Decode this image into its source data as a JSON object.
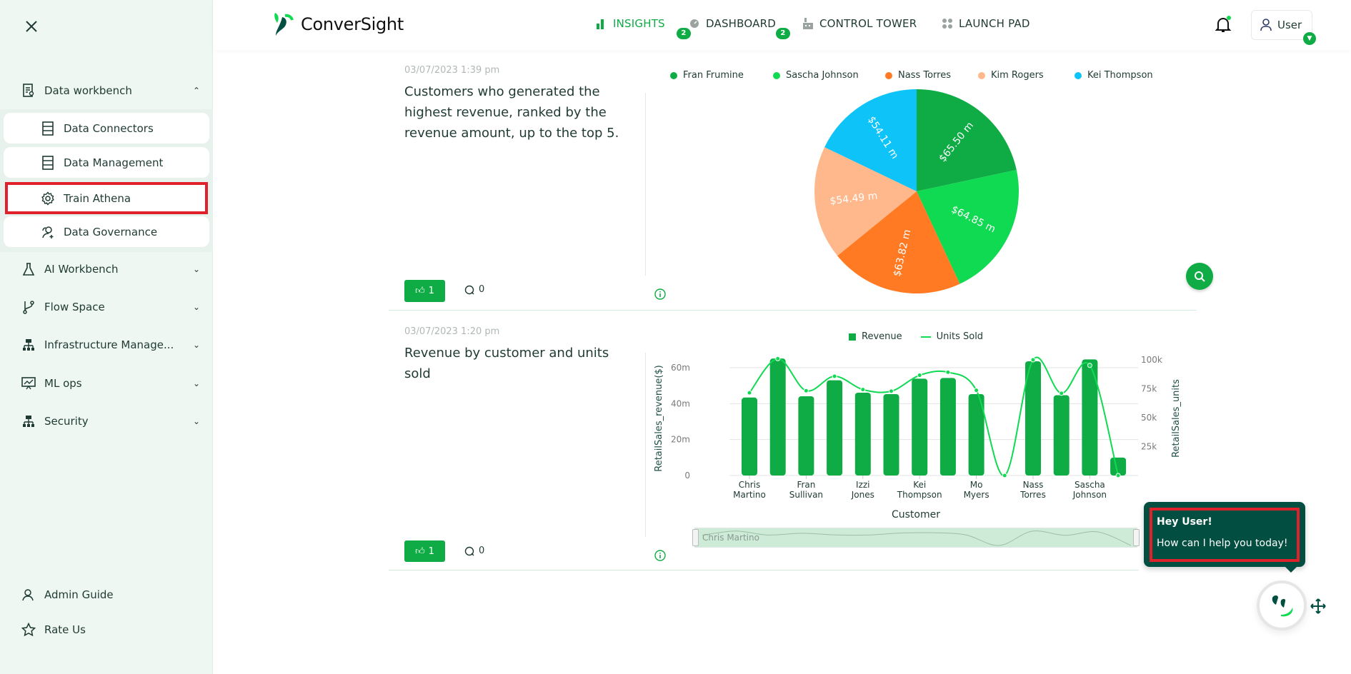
{
  "sidebar": {
    "close_icon": "close-icon",
    "sections": [
      {
        "label": "Data workbench",
        "icon": "report-icon",
        "expanded": true
      },
      {
        "label": "AI Workbench",
        "icon": "flask-icon"
      },
      {
        "label": "Flow Space",
        "icon": "branch-icon"
      },
      {
        "label": "Infrastructure Manage...",
        "icon": "sitemap-icon"
      },
      {
        "label": "ML ops",
        "icon": "presentation-chart-icon"
      },
      {
        "label": "Security",
        "icon": "sitemap-icon"
      }
    ],
    "sub_items": [
      {
        "label": "Data Connectors",
        "icon": "server-icon"
      },
      {
        "label": "Data Management",
        "icon": "server-icon"
      },
      {
        "label": "Train Athena",
        "icon": "gear-icon",
        "highlighted": true
      },
      {
        "label": "Data Governance",
        "icon": "users-icon"
      }
    ],
    "footer": [
      {
        "label": "Admin Guide",
        "icon": "user-guide-icon"
      },
      {
        "label": "Rate Us",
        "icon": "star-icon"
      }
    ]
  },
  "header": {
    "logo_text": "ConverSight",
    "nav": [
      {
        "label": "INSIGHTS",
        "badge": "2",
        "active": true
      },
      {
        "label": "DASHBOARD",
        "badge": "2"
      },
      {
        "label": "CONTROL TOWER"
      },
      {
        "label": "LAUNCH PAD"
      }
    ],
    "user_label": "User"
  },
  "colors": {
    "accent": "#0fac45",
    "bright_green": "#10d952",
    "dark_green": "#024f41",
    "highlight_red": "#e0202a"
  },
  "cards": [
    {
      "date": "03/07/2023 1:39 pm",
      "title": "Customers who generated the highest revenue, ranked by the revenue amount, up to the top 5.",
      "likes": "1",
      "comments": "0"
    },
    {
      "date": "03/07/2023 1:20 pm",
      "title": "Revenue by customer and units sold",
      "likes": "1",
      "comments": "0"
    }
  ],
  "chart_data": [
    {
      "type": "pie",
      "legend_position": "top",
      "slices": [
        {
          "name": "Fran Frumine",
          "value": 65.5,
          "label": "$65.50 m",
          "color": "#0fac45"
        },
        {
          "name": "Sascha Johnson",
          "value": 64.85,
          "label": "$64.85 m",
          "color": "#10d952"
        },
        {
          "name": "Nass Torres",
          "value": 63.82,
          "label": "$63.82 m",
          "color": "#ff7a22"
        },
        {
          "name": "Kim Rogers",
          "value": 54.49,
          "label": "$54.49 m",
          "color": "#ffb88b"
        },
        {
          "name": "Kei Thompson",
          "value": 54.11,
          "label": "$54.11 m",
          "color": "#0ec3f7"
        }
      ]
    },
    {
      "type": "bar+line",
      "legend_position": "top",
      "xlabel": "Customer",
      "ylabel": "RetailSales_revenue($)",
      "y2label": "RetailSales_units",
      "categories": [
        "Chris\nMartino",
        "",
        "Fran\nSullivan",
        "",
        "Izzi\nJones",
        "",
        "Kei\nThompson",
        "",
        "Mo\nMyers",
        "",
        "Nass\nTorres",
        "",
        "Sascha\nJohnson",
        ""
      ],
      "yticks": [
        "0",
        "20m",
        "40m",
        "60m"
      ],
      "y2ticks": [
        "25k",
        "50k",
        "75k",
        "100k"
      ],
      "series": [
        {
          "name": "Revenue",
          "type": "bar",
          "axis": "left",
          "unit": "m",
          "color": "#0fac45",
          "values": [
            43.4,
            65.1,
            44.1,
            53.0,
            46.1,
            45.3,
            53.9,
            54.3,
            45.3,
            0,
            63.6,
            44.7,
            64.6,
            10.0
          ]
        },
        {
          "name": "Units Sold",
          "type": "line",
          "axis": "right",
          "unit": "k",
          "color": "#10d952",
          "values": [
            71.5,
            101,
            73.3,
            85.8,
            74.3,
            72.9,
            86.7,
            89.3,
            73.7,
            0,
            100,
            71.1,
            95.2,
            0
          ]
        }
      ],
      "zoom_slider_label": "Chris Martino"
    }
  ],
  "assistant": {
    "greeting": "Hey User!",
    "message": "How can I help you today!"
  }
}
